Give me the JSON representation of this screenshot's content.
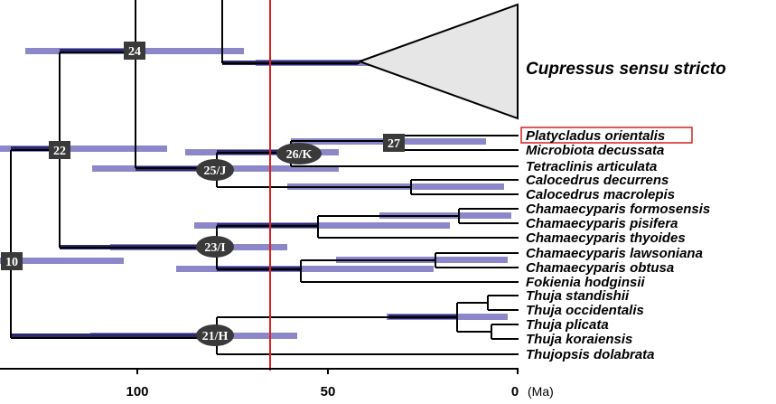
{
  "colors": {
    "branch": "#000000",
    "hpd_bar": "#8b87c9",
    "hpd_bar_dark": "#2c2a6e",
    "node_badge": "#3a3a3a",
    "boundary_line": "#e02020",
    "collapsed_clade_fill": "#e6e6e6",
    "highlight_box": "#d42020"
  },
  "axis": {
    "ticks": [
      {
        "value": 100,
        "label": "100"
      },
      {
        "value": 50,
        "label": "50"
      },
      {
        "value": 0,
        "label": "0"
      }
    ],
    "unit": "(Ma)"
  },
  "boundary_line_ma": 64,
  "collapsed_clade": {
    "label": "Cupressus sensu stricto"
  },
  "highlighted_taxon": "Platycladus orientalis",
  "taxa": [
    "Platycladus orientalis",
    "Microbiota decussata",
    "Tetraclinis articulata",
    "Calocedrus decurrens",
    "Calocedrus macrolepis",
    "Chamaecyparis formosensis",
    "Chamaecyparis pisifera",
    "Chamaecyparis thyoides",
    "Chamaecyparis lawsoniana",
    "Chamaecyparis obtusa",
    "Fokienia hodginsii",
    "Thuja standishii",
    "Thuja occidentalis",
    "Thuja plicata",
    "Thuja koraiensis",
    "Thujopsis dolabrata"
  ],
  "node_labels": [
    {
      "id": "n24",
      "label": "24",
      "shape": "square"
    },
    {
      "id": "n22",
      "label": "22",
      "shape": "square"
    },
    {
      "id": "n10",
      "label": "10",
      "shape": "square"
    },
    {
      "id": "n27",
      "label": "27",
      "shape": "square"
    },
    {
      "id": "n26",
      "label": "26/K",
      "shape": "ellipse"
    },
    {
      "id": "n25",
      "label": "25/J",
      "shape": "ellipse"
    },
    {
      "id": "n23",
      "label": "23/I",
      "shape": "ellipse"
    },
    {
      "id": "n21",
      "label": "21/H",
      "shape": "ellipse"
    }
  ]
}
